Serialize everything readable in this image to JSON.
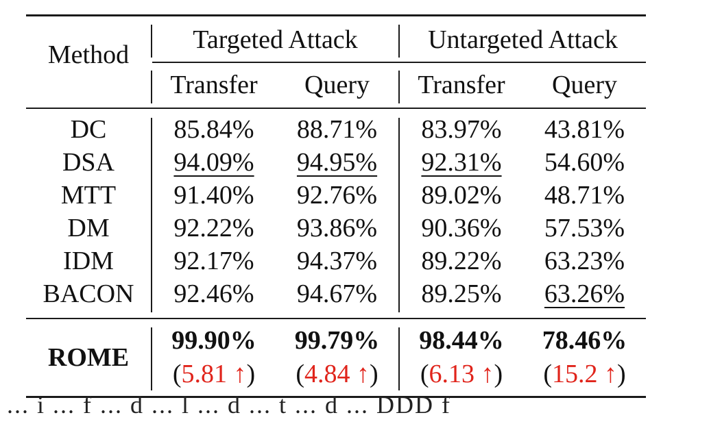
{
  "table": {
    "header": {
      "method": "Method",
      "group_targeted": "Targeted Attack",
      "group_untargeted": "Untargeted Attack",
      "sub": [
        "Transfer",
        "Query",
        "Transfer",
        "Query"
      ]
    },
    "rows": [
      {
        "method": "DC",
        "values": [
          "85.84%",
          "88.71%",
          "83.97%",
          "43.81%"
        ]
      },
      {
        "method": "DSA",
        "values": [
          "94.09%",
          "94.95%",
          "92.31%",
          "54.60%"
        ]
      },
      {
        "method": "MTT",
        "values": [
          "91.40%",
          "92.76%",
          "89.02%",
          "48.71%"
        ]
      },
      {
        "method": "DM",
        "values": [
          "92.22%",
          "93.86%",
          "90.36%",
          "57.53%"
        ]
      },
      {
        "method": "IDM",
        "values": [
          "92.17%",
          "94.37%",
          "89.22%",
          "63.23%"
        ]
      },
      {
        "method": "BACON",
        "values": [
          "92.46%",
          "94.67%",
          "89.25%",
          "63.26%"
        ]
      }
    ],
    "ours": {
      "method": "ROME",
      "values": [
        "99.90%",
        "99.79%",
        "98.44%",
        "78.46%"
      ],
      "improvements": [
        "5.81 ↑",
        "4.84 ↑",
        "6.13 ↑",
        "15.2 ↑"
      ],
      "improvement_color": "#e0241b"
    },
    "underlined": [
      {
        "row": "DSA",
        "cols": [
          0,
          1,
          2
        ]
      },
      {
        "row": "BACON",
        "cols": [
          3
        ]
      }
    ]
  },
  "trailing_text": "... i ... f ... d ... l ... d ... t ... d ... DDD f"
}
